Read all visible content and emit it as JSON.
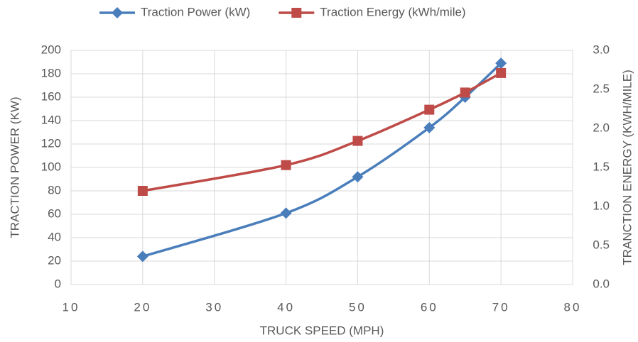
{
  "chart_data": {
    "type": "line",
    "x_label": "TRUCK SPEED (MPH)",
    "y_label": "TRACTION POWER (KW)",
    "y2_label": "TRANCTION ENERGY (KWH/MILE)",
    "x": [
      20,
      40,
      50,
      60,
      65,
      70
    ],
    "xlim": [
      10,
      80
    ],
    "xticks": [
      10,
      20,
      30,
      40,
      50,
      60,
      70,
      80
    ],
    "ylim": [
      0,
      200
    ],
    "yticks": [
      0,
      20,
      40,
      60,
      80,
      100,
      120,
      140,
      160,
      180,
      200
    ],
    "y2lim": [
      0,
      3
    ],
    "y2ticks": [
      {
        "value": 0,
        "label": "0.0"
      },
      {
        "value": 0.5,
        "label": "0.5"
      },
      {
        "value": 1,
        "label": "1.0"
      },
      {
        "value": 1.5,
        "label": "1.5"
      },
      {
        "value": 2,
        "label": "2.0"
      },
      {
        "value": 2.5,
        "label": "2.5"
      },
      {
        "value": 3,
        "label": "3.0"
      }
    ],
    "grid": true,
    "legend": "top",
    "smooth": true,
    "series": [
      {
        "name": "Traction Power (kW)",
        "color": "#4a7ebb",
        "marker": "diamond",
        "values": [
          24,
          61,
          92,
          134,
          160,
          189
        ]
      },
      {
        "name": "Traction Energy (kWh/mile)",
        "color": "#be4b48",
        "marker": "square",
        "axis": "y2",
        "values": [
          1.2,
          1.53,
          1.84,
          2.24,
          2.46,
          2.71
        ]
      }
    ]
  }
}
